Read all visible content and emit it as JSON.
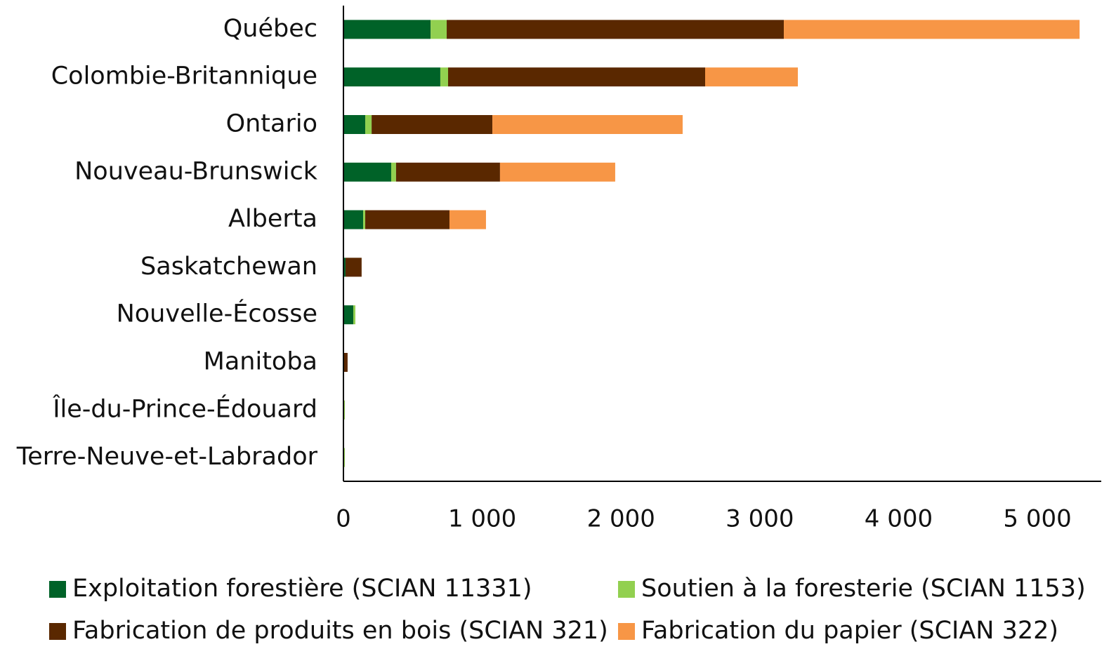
{
  "chart_data": {
    "type": "stacked-bar-horizontal",
    "categories": [
      "Québec",
      "Colombie-Britannique",
      "Ontario",
      "Nouveau-Brunswick",
      "Alberta",
      "Saskatchewan",
      "Nouvelle-Écosse",
      "Manitoba",
      "Île-du-Prince-Édouard",
      "Terre-Neuve-et-Labrador"
    ],
    "series": [
      {
        "name": "Exploitation forestière (SCIAN 11331)",
        "color": "#006228",
        "values": [
          628,
          698,
          157,
          344,
          142,
          15,
          71,
          0,
          5,
          5
        ]
      },
      {
        "name": "Soutien à la foresterie (SCIAN 1153)",
        "color": "#92d050",
        "values": [
          116,
          56,
          46,
          35,
          15,
          0,
          15,
          0,
          5,
          5
        ]
      },
      {
        "name": "Fabrication de produits en bois (SCIAN 321)",
        "color": "#5a2800",
        "values": [
          2429,
          1852,
          870,
          749,
          607,
          116,
          0,
          30,
          0,
          0
        ]
      },
      {
        "name": "Fabrication du papier (SCIAN 322)",
        "color": "#f79646",
        "values": [
          2131,
          668,
          1371,
          830,
          263,
          0,
          0,
          0,
          0,
          0
        ]
      }
    ],
    "xlim": [
      0,
      5460
    ],
    "xticks": [
      0,
      {
        "value": 1000,
        "label": "1 000"
      },
      {
        "value": 2000,
        "label": "2 000"
      },
      {
        "value": 3000,
        "label": "3 000"
      },
      {
        "value": 4000,
        "label": "4 000"
      },
      {
        "value": 5000,
        "label": "5 000"
      }
    ],
    "legend": "bottom"
  }
}
